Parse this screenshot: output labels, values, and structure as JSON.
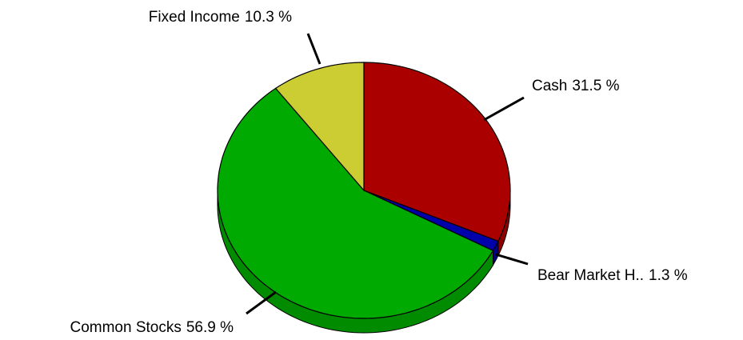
{
  "chart_data": {
    "type": "pie",
    "categories": [
      "Cash",
      "Bear Market H..",
      "Common Stocks",
      "Fixed Income"
    ],
    "values": [
      31.5,
      1.3,
      56.9,
      10.3
    ],
    "value_labels": [
      "31.5 %",
      "1.3 %",
      "56.9 %",
      "10.3 %"
    ],
    "colors": [
      "#aa0000",
      "#0000aa",
      "#00aa00",
      "#cccc33"
    ]
  }
}
